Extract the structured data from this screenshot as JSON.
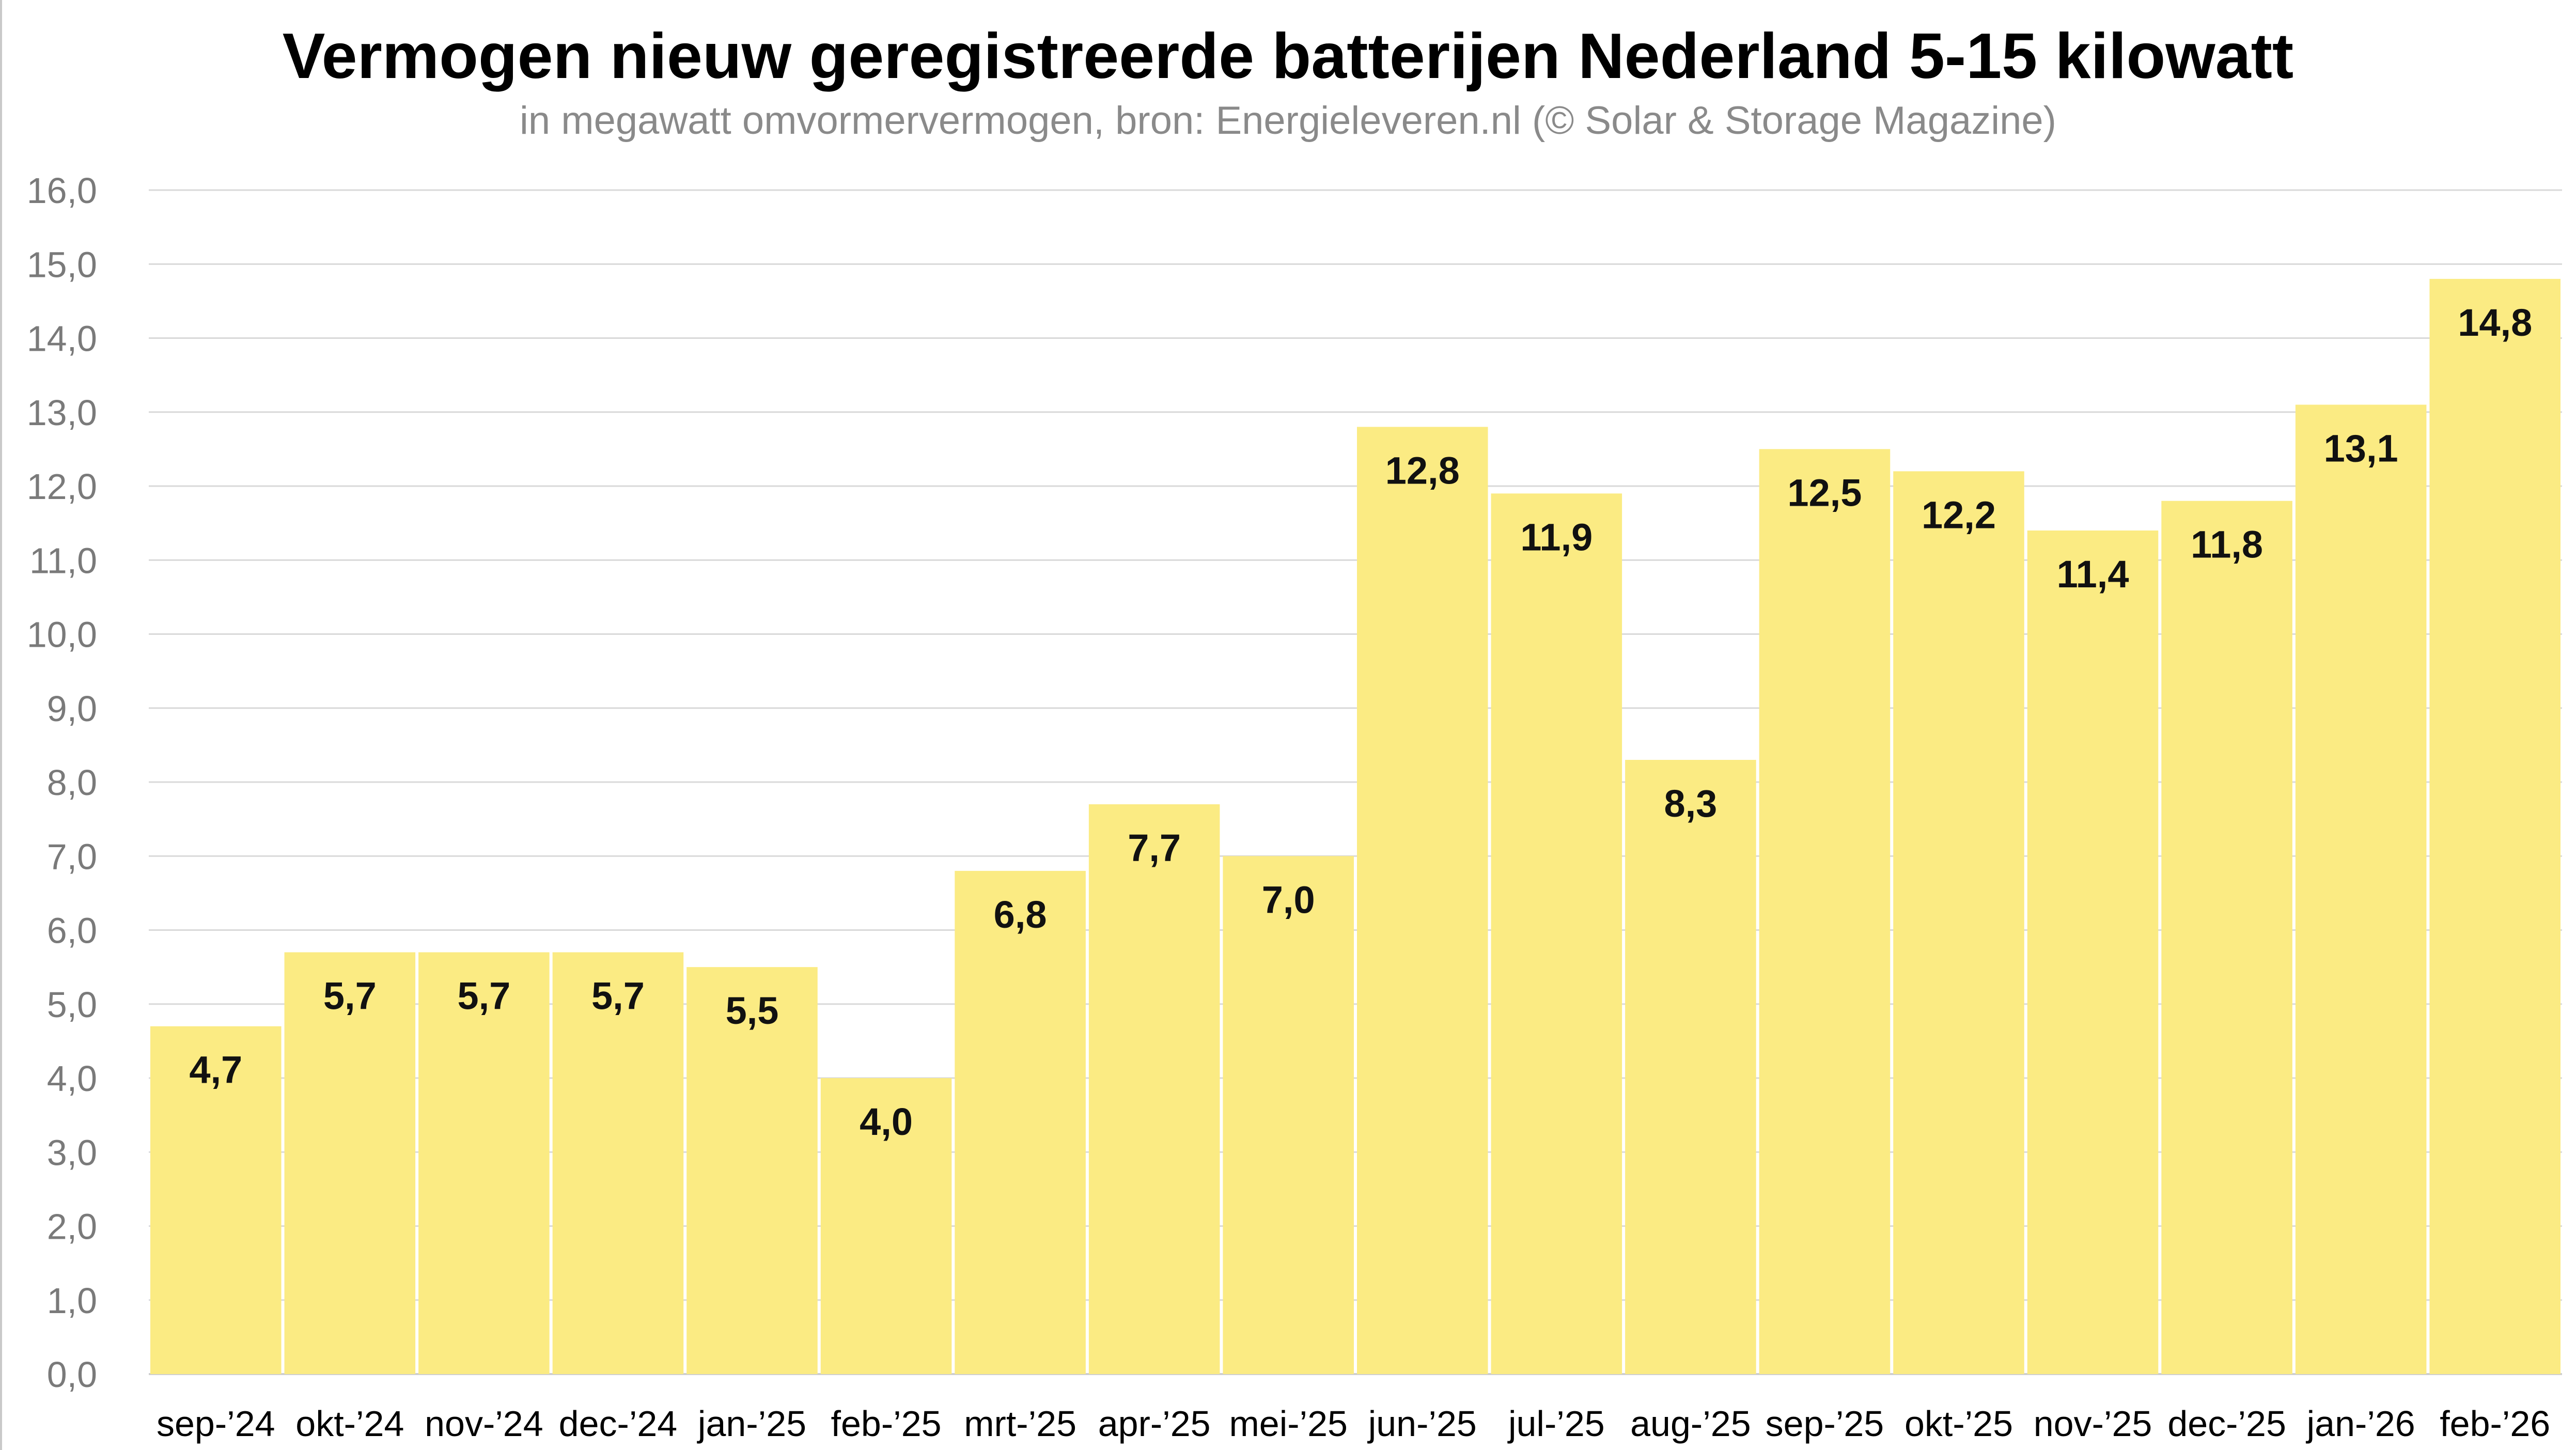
{
  "chart_data": {
    "type": "bar",
    "title": "Vermogen nieuw geregistreerde batterijen Nederland 5-15 kilowatt",
    "subtitle": "in megawatt omvormervermogen, bron: Energieleveren.nl (© Solar & Storage Magazine)",
    "xlabel": "",
    "ylabel": "",
    "ylim": [
      0,
      16
    ],
    "ytick_step": 1,
    "ytick_labels": [
      "0,0",
      "1,0",
      "2,0",
      "3,0",
      "4,0",
      "5,0",
      "6,0",
      "7,0",
      "8,0",
      "9,0",
      "10,0",
      "11,0",
      "12,0",
      "13,0",
      "14,0",
      "15,0",
      "16,0"
    ],
    "grid": true,
    "categories": [
      "sep-’24",
      "okt-’24",
      "nov-’24",
      "dec-’24",
      "jan-’25",
      "feb-’25",
      "mrt-’25",
      "apr-’25",
      "mei-’25",
      "jun-’25",
      "jul-’25",
      "aug-’25",
      "sep-’25",
      "okt-’25",
      "nov-’25",
      "dec-’25",
      "jan-’26",
      "feb-’26"
    ],
    "values": [
      4.7,
      5.7,
      5.7,
      5.7,
      5.5,
      4.0,
      6.8,
      7.7,
      7.0,
      12.8,
      11.9,
      8.3,
      12.5,
      12.2,
      11.4,
      11.8,
      13.1,
      14.8
    ],
    "value_labels": [
      "4,7",
      "5,7",
      "5,7",
      "5,7",
      "5,5",
      "4,0",
      "6,8",
      "7,7",
      "7,0",
      "12,8",
      "11,9",
      "8,3",
      "12,5",
      "12,2",
      "11,4",
      "11,8",
      "13,1",
      "14,8"
    ],
    "bar_color": "#fbeb83",
    "grid_color": "#d9d9d9"
  }
}
